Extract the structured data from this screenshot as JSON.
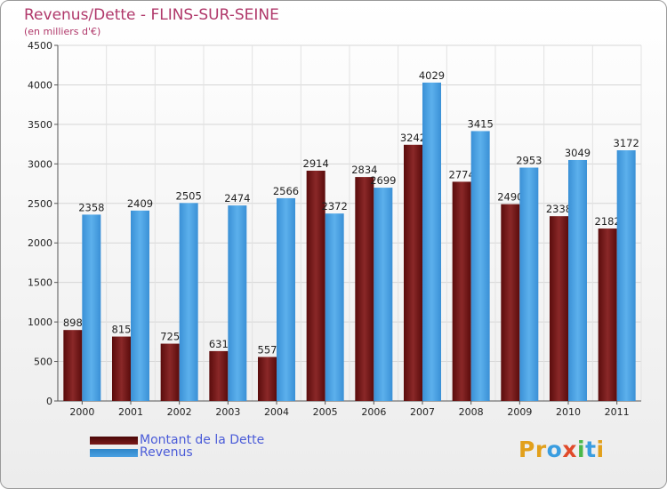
{
  "header": {
    "title": "Revenus/Dette - FLINS-SUR-SEINE",
    "subtitle": "(en milliers d'€)"
  },
  "colors": {
    "dette": "#7a1a1a",
    "revenus": "#4aa0e2",
    "title": "#b0386a",
    "legend_text": "#4a5bd8"
  },
  "chart_data": {
    "type": "bar",
    "title": "Revenus/Dette - FLINS-SUR-SEINE",
    "subtitle": "(en milliers d'€)",
    "xlabel": "",
    "ylabel": "",
    "ylim": [
      0,
      4500
    ],
    "yticks": [
      0,
      500,
      1000,
      1500,
      2000,
      2500,
      3000,
      3500,
      4000,
      4500
    ],
    "grid": true,
    "legend_position": "bottom-left",
    "categories": [
      "2000",
      "2001",
      "2002",
      "2003",
      "2004",
      "2005",
      "2006",
      "2007",
      "2008",
      "2009",
      "2010",
      "2011"
    ],
    "series": [
      {
        "name": "Montant de la Dette",
        "values": [
          898,
          815,
          725,
          631,
          557,
          2914,
          2834,
          3242,
          2774,
          2490,
          2338,
          2182
        ]
      },
      {
        "name": "Revenus",
        "values": [
          2358,
          2409,
          2505,
          2474,
          2566,
          2372,
          2699,
          4029,
          3415,
          2953,
          3049,
          3172
        ]
      }
    ]
  },
  "legend": {
    "dette_label": "Montant de la Dette",
    "revenus_label": "Revenus"
  },
  "logo": {
    "letters": [
      "P",
      "r",
      "o",
      "x",
      "i",
      "t",
      "i"
    ],
    "colors": [
      "#e2a01c",
      "#e2a01c",
      "#3a9de0",
      "#e04a2a",
      "#4ab84a",
      "#3a9de0",
      "#e2a01c"
    ]
  }
}
